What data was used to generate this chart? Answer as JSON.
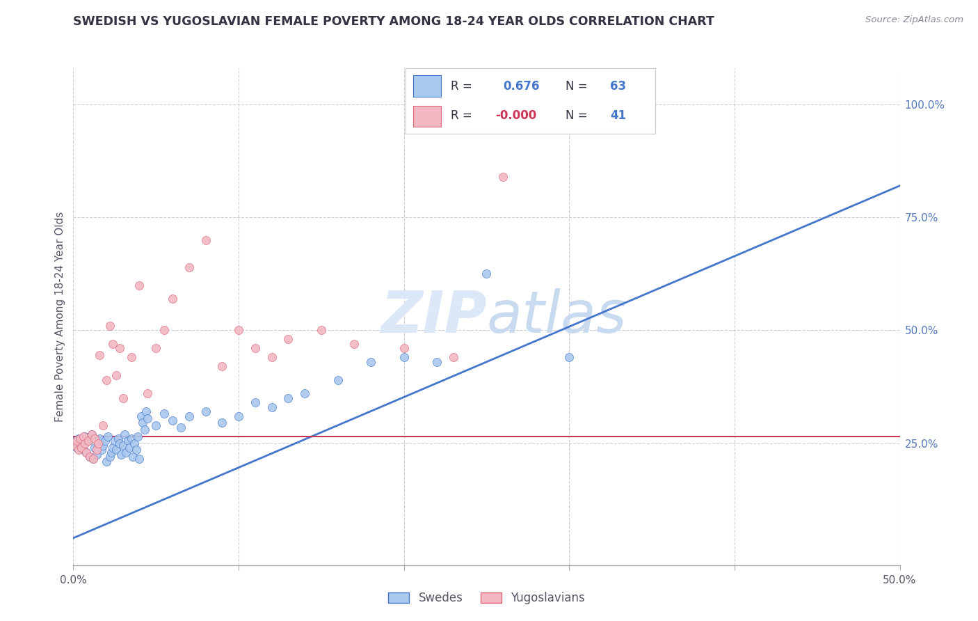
{
  "title": "SWEDISH VS YUGOSLAVIAN FEMALE POVERTY AMONG 18-24 YEAR OLDS CORRELATION CHART",
  "source": "Source: ZipAtlas.com",
  "ylabel": "Female Poverty Among 18-24 Year Olds",
  "xlim": [
    0.0,
    0.5
  ],
  "ylim": [
    -0.02,
    1.08
  ],
  "x_ticks": [
    0.0,
    0.1,
    0.2,
    0.3,
    0.4,
    0.5
  ],
  "x_tick_labels": [
    "0.0%",
    "",
    "",
    "",
    "",
    "50.0%"
  ],
  "y_ticks_right": [
    0.25,
    0.5,
    0.75,
    1.0
  ],
  "y_tick_labels_right": [
    "25.0%",
    "50.0%",
    "75.0%",
    "100.0%"
  ],
  "bg_color": "#ffffff",
  "grid_color": "#c8c8d0",
  "blue_scatter_color": "#aac8ee",
  "pink_scatter_color": "#f4b8c4",
  "blue_line_color": "#4477cc",
  "pink_line_color": "#cc3355",
  "watermark_color": "#dce8f8",
  "blue_line_x": [
    0.0,
    0.5
  ],
  "blue_line_y": [
    0.04,
    0.82
  ],
  "pink_line_x": [
    0.0,
    0.5
  ],
  "pink_line_y": [
    0.265,
    0.265
  ],
  "swedes_x": [
    0.001,
    0.002,
    0.003,
    0.004,
    0.005,
    0.006,
    0.007,
    0.008,
    0.009,
    0.01,
    0.011,
    0.012,
    0.013,
    0.014,
    0.015,
    0.016,
    0.017,
    0.018,
    0.019,
    0.02,
    0.021,
    0.022,
    0.023,
    0.024,
    0.025,
    0.026,
    0.027,
    0.028,
    0.029,
    0.03,
    0.031,
    0.032,
    0.033,
    0.034,
    0.035,
    0.036,
    0.037,
    0.038,
    0.039,
    0.04,
    0.041,
    0.042,
    0.043,
    0.044,
    0.045,
    0.05,
    0.055,
    0.06,
    0.065,
    0.07,
    0.08,
    0.09,
    0.1,
    0.11,
    0.12,
    0.13,
    0.14,
    0.16,
    0.18,
    0.2,
    0.22,
    0.25,
    0.3
  ],
  "swedes_y": [
    0.255,
    0.24,
    0.26,
    0.245,
    0.25,
    0.235,
    0.265,
    0.23,
    0.255,
    0.22,
    0.27,
    0.215,
    0.24,
    0.225,
    0.25,
    0.26,
    0.235,
    0.245,
    0.255,
    0.21,
    0.265,
    0.22,
    0.23,
    0.24,
    0.255,
    0.235,
    0.26,
    0.25,
    0.225,
    0.245,
    0.27,
    0.23,
    0.255,
    0.24,
    0.26,
    0.22,
    0.25,
    0.235,
    0.265,
    0.215,
    0.31,
    0.295,
    0.28,
    0.32,
    0.305,
    0.29,
    0.315,
    0.3,
    0.285,
    0.31,
    0.32,
    0.295,
    0.31,
    0.34,
    0.33,
    0.35,
    0.36,
    0.39,
    0.43,
    0.44,
    0.43,
    0.625,
    0.44
  ],
  "yugos_x": [
    0.001,
    0.002,
    0.003,
    0.004,
    0.005,
    0.006,
    0.007,
    0.008,
    0.009,
    0.01,
    0.011,
    0.012,
    0.013,
    0.014,
    0.015,
    0.016,
    0.018,
    0.02,
    0.022,
    0.024,
    0.026,
    0.028,
    0.03,
    0.035,
    0.04,
    0.045,
    0.05,
    0.055,
    0.06,
    0.07,
    0.08,
    0.09,
    0.1,
    0.11,
    0.12,
    0.13,
    0.15,
    0.17,
    0.2,
    0.23,
    0.26
  ],
  "yugos_y": [
    0.245,
    0.255,
    0.235,
    0.26,
    0.24,
    0.265,
    0.25,
    0.23,
    0.255,
    0.22,
    0.27,
    0.215,
    0.26,
    0.235,
    0.25,
    0.445,
    0.29,
    0.39,
    0.51,
    0.47,
    0.4,
    0.46,
    0.35,
    0.44,
    0.6,
    0.36,
    0.46,
    0.5,
    0.57,
    0.64,
    0.7,
    0.42,
    0.5,
    0.46,
    0.44,
    0.48,
    0.5,
    0.47,
    0.46,
    0.44,
    0.84
  ]
}
